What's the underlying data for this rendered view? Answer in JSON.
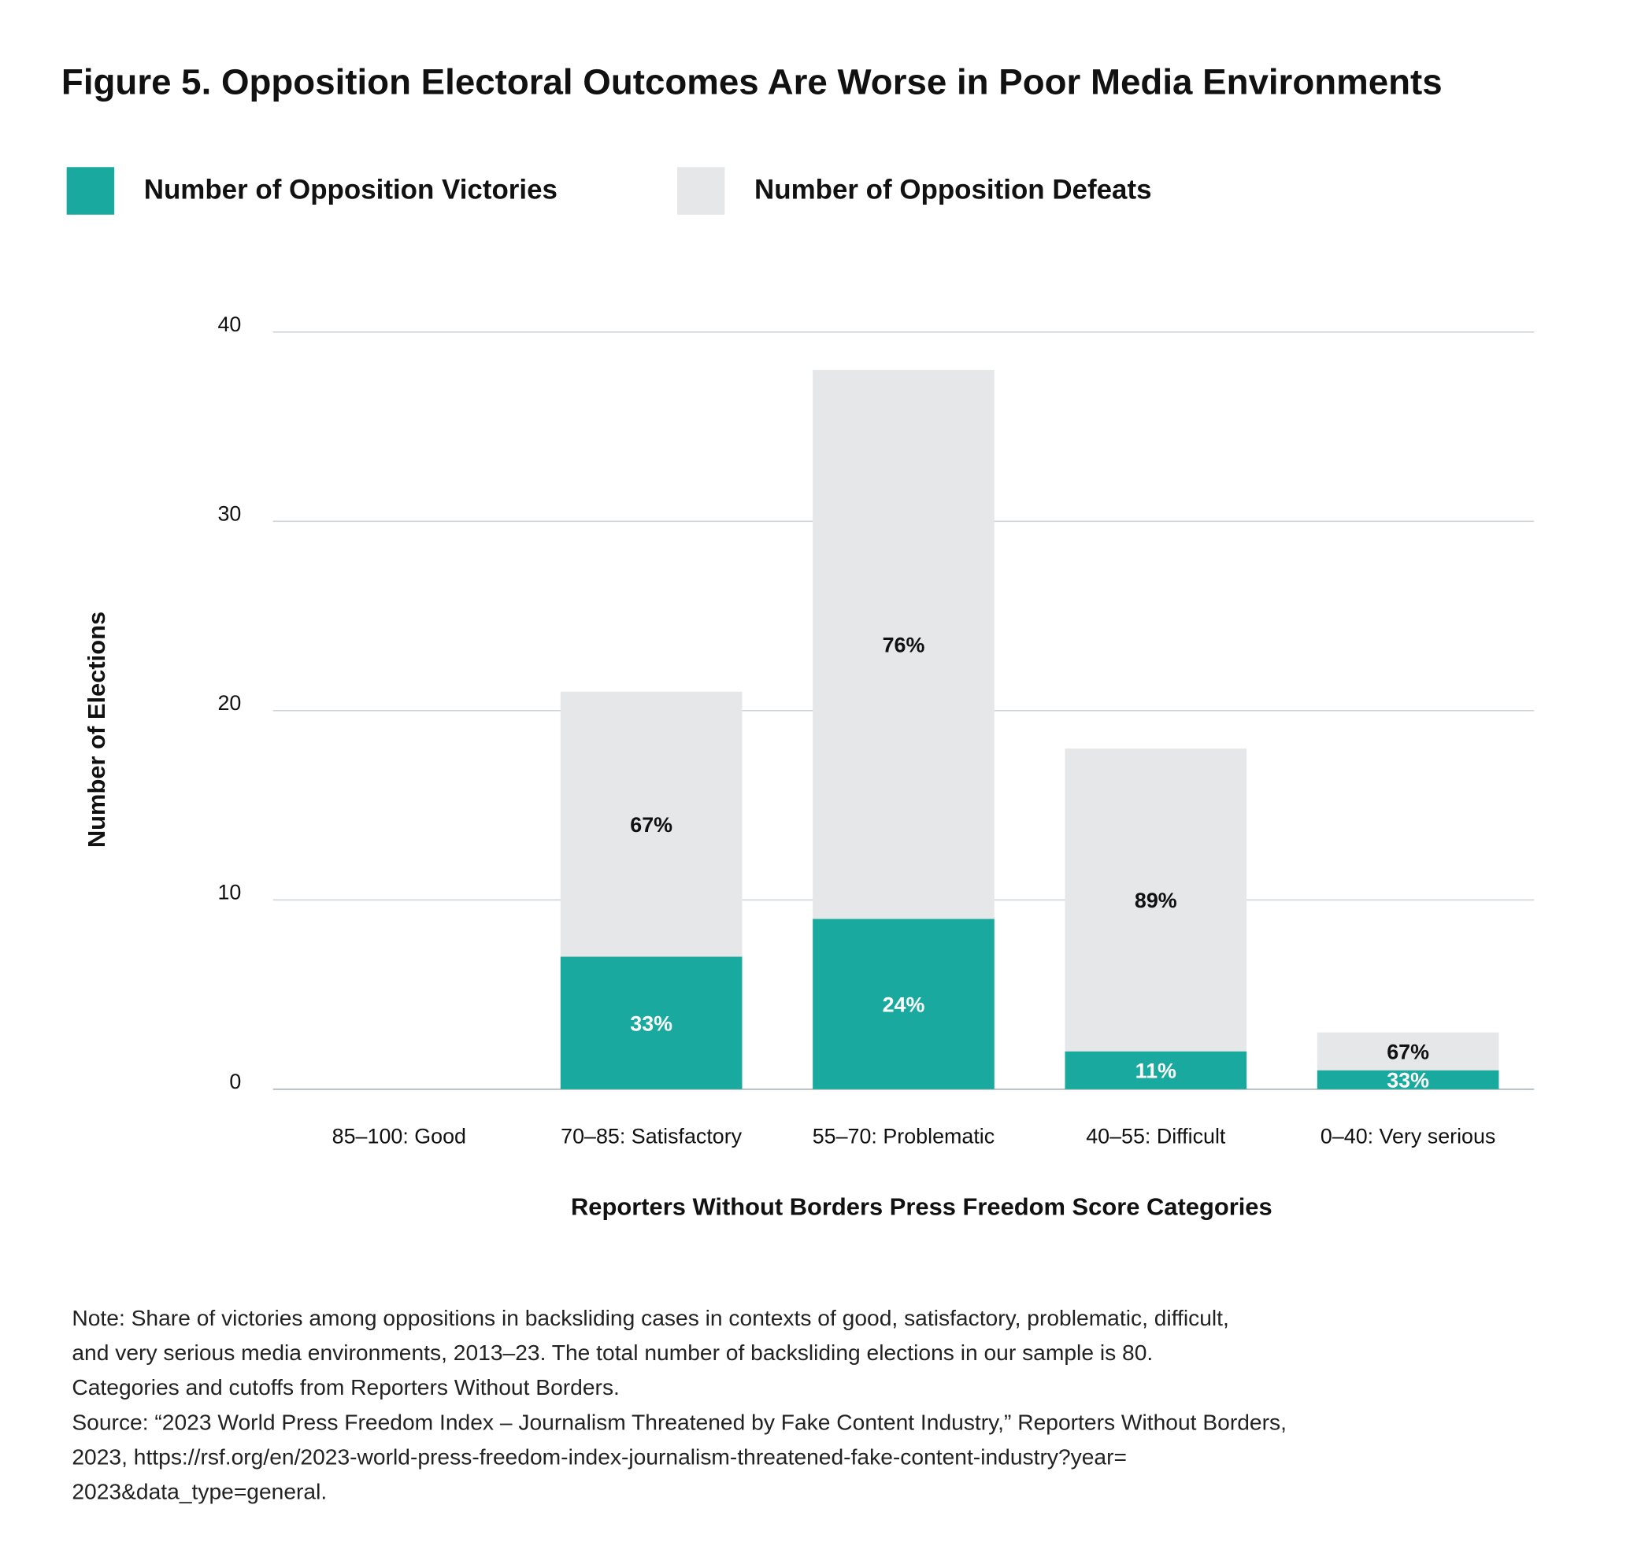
{
  "chart_data": {
    "type": "stacked_bar",
    "title": "Figure 5. Opposition Electoral Outcomes Are Worse in Poor Media Environments",
    "categories": [
      "85–100: Good",
      "70–85: Satisfactory",
      "55–70: Problematic",
      "40–55: Difficult",
      "0–40: Very serious"
    ],
    "series": [
      {
        "name": "Number of Opposition Victories",
        "color": "#1aa99e",
        "values": [
          0,
          7,
          9,
          2,
          1
        ],
        "labels": [
          null,
          "33%",
          "24%",
          "11%",
          "33%"
        ],
        "label_color": "#ffffff"
      },
      {
        "name": "Number of Opposition Defeats",
        "color": "#e6e7e9",
        "values": [
          0,
          14,
          29,
          16,
          2
        ],
        "labels": [
          null,
          "67%",
          "76%",
          "89%",
          "67%"
        ],
        "label_color": "#111111"
      }
    ],
    "ylim": [
      0,
      40
    ],
    "yticks": [
      0,
      10,
      20,
      30,
      40
    ],
    "grid": true,
    "y_label": "Number of Elections",
    "x_label": "Reporters Without Borders Press Freedom Score Categories",
    "note": [
      "Note:  Share of victories among oppositions in backsliding cases in contexts of good, satisfactory, problematic, difficult,",
      "and very serious media environments, 2013–23. The total number of backsliding elections in our sample is 80.",
      "Categories and cutoffs from Reporters Without Borders.",
      "Source: “2023 World Press Freedom Index – Journalism Threatened by Fake Content Industry,” Reporters Without Borders,",
      "2023, https://rsf.org/en/2023-world-press-freedom-index-journalism-threatened-fake-content-industry?year=",
      "2023&data_type=general."
    ]
  }
}
